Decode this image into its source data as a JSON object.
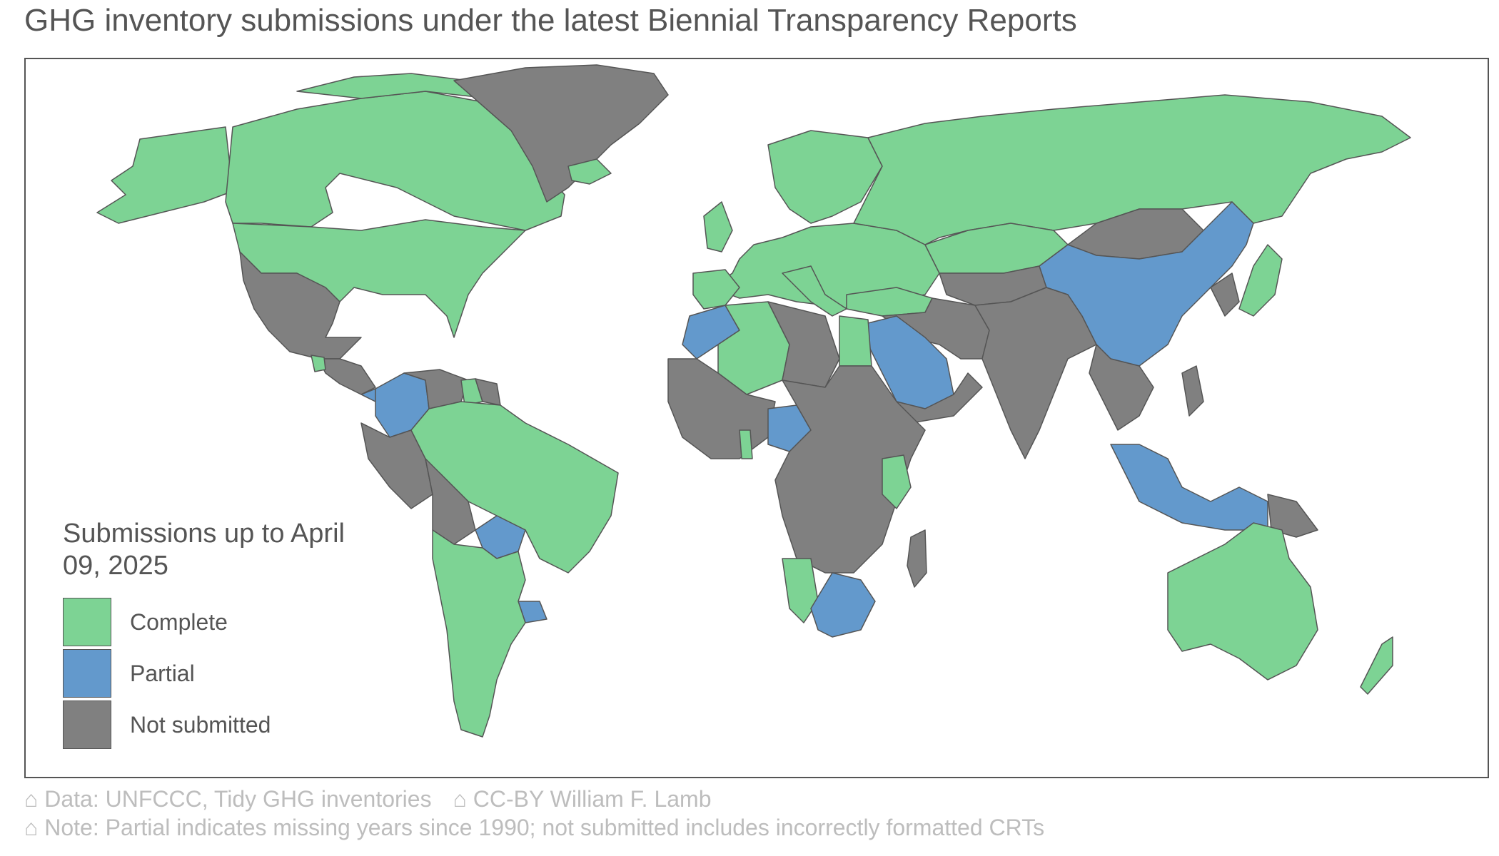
{
  "title": "GHG inventory submissions under the latest Biennial Transparency Reports",
  "colors": {
    "complete": "#7dd394",
    "partial": "#6399cc",
    "not_submitted": "#808080",
    "border": "#555555",
    "ocean": "#ffffff"
  },
  "legend": {
    "title": "Submissions up to April 09, 2025",
    "items": [
      {
        "key": "complete",
        "label": "Complete",
        "color": "#7dd394"
      },
      {
        "key": "partial",
        "label": "Partial",
        "color": "#6399cc"
      },
      {
        "key": "not_submitted",
        "label": "Not submitted",
        "color": "#808080"
      }
    ]
  },
  "footer": {
    "data_source": "⌂ Data: UNFCCC, Tidy GHG inventories",
    "license": "⌂ CC-BY William F. Lamb",
    "note": "⌂ Note: Partial indicates missing years since 1990; not submitted includes incorrectly formatted CRTs"
  }
}
